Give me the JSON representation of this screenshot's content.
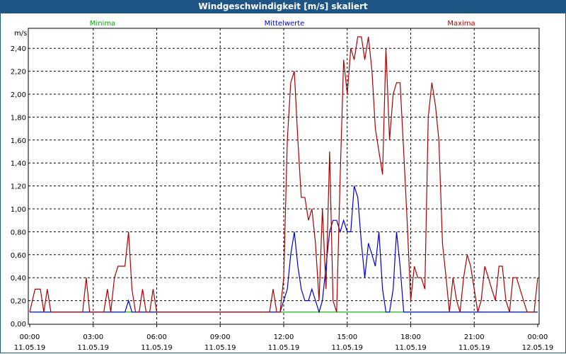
{
  "window": {
    "title": "Windgeschwindigkeit [m/s] skaliert"
  },
  "colors": {
    "titlebar": "#1f5585",
    "minima": "#00aa00",
    "mittelwerte": "#0000cc",
    "maxima": "#aa0000"
  },
  "chart_data": {
    "type": "line",
    "title": "Windgeschwindigkeit [m/s] skaliert",
    "ylabel": "m/s",
    "xlabel": "",
    "ylim": [
      0,
      2.5
    ],
    "xlim": [
      0,
      24
    ],
    "grid": true,
    "legend_placement": "top",
    "y_ticks": [
      "0,00",
      "0,20",
      "0,40",
      "0,60",
      "0,80",
      "1,00",
      "1,20",
      "1,40",
      "1,60",
      "1,80",
      "2,00",
      "2,20",
      "2,40"
    ],
    "x_ticks": [
      {
        "time": "00:00",
        "date": "11.05.19"
      },
      {
        "time": "03:00",
        "date": "11.05.19"
      },
      {
        "time": "06:00",
        "date": "11.05.19"
      },
      {
        "time": "09:00",
        "date": "11.05.19"
      },
      {
        "time": "12:00",
        "date": "11.05.19"
      },
      {
        "time": "15:00",
        "date": "11.05.19"
      },
      {
        "time": "18:00",
        "date": "11.05.19"
      },
      {
        "time": "21:00",
        "date": "11.05.19"
      },
      {
        "time": "00:00",
        "date": "12.05.19"
      }
    ],
    "series": [
      {
        "name": "Minima",
        "color": "#00aa00",
        "x": [
          0,
          24
        ],
        "y": [
          0.1,
          0.1
        ]
      },
      {
        "name": "Mittelwerte",
        "color": "#0000cc",
        "x": [
          0,
          4.5,
          4.67,
          4.83,
          11.83,
          12.17,
          12.33,
          12.5,
          12.67,
          12.83,
          13.0,
          13.17,
          13.33,
          13.5,
          13.67,
          13.83,
          14.0,
          14.17,
          14.33,
          14.5,
          14.67,
          14.83,
          15.0,
          15.17,
          15.33,
          15.5,
          15.67,
          15.83,
          16.0,
          16.17,
          16.33,
          16.5,
          16.67,
          16.83,
          17.0,
          17.17,
          17.33,
          17.5,
          17.67,
          24
        ],
        "y": [
          0.1,
          0.1,
          0.2,
          0.1,
          0.1,
          0.3,
          0.6,
          0.8,
          0.5,
          0.3,
          0.2,
          0.2,
          0.3,
          0.2,
          0.1,
          0.2,
          0.5,
          0.8,
          0.9,
          0.9,
          0.8,
          0.9,
          0.8,
          0.8,
          1.2,
          1.1,
          0.7,
          0.4,
          0.7,
          0.6,
          0.5,
          0.8,
          0.3,
          0.1,
          0.1,
          0.3,
          0.8,
          0.5,
          0.1,
          0.1
        ]
      },
      {
        "name": "Maxima",
        "color": "#aa0000",
        "x": [
          0,
          0.25,
          0.5,
          0.67,
          0.83,
          1.0,
          2.5,
          2.67,
          2.83,
          3.5,
          3.67,
          3.83,
          4.0,
          4.17,
          4.33,
          4.5,
          4.67,
          4.83,
          5.0,
          5.17,
          5.33,
          5.5,
          5.67,
          5.83,
          6.0,
          11.33,
          11.5,
          11.67,
          11.83,
          12.0,
          12.17,
          12.33,
          12.5,
          12.67,
          12.83,
          13.0,
          13.17,
          13.33,
          13.5,
          13.67,
          13.83,
          14.0,
          14.17,
          14.33,
          14.5,
          14.67,
          14.83,
          15.0,
          15.17,
          15.33,
          15.5,
          15.67,
          15.83,
          16.0,
          16.17,
          16.33,
          16.5,
          16.67,
          16.83,
          17.0,
          17.17,
          17.33,
          17.5,
          17.67,
          17.83,
          18.0,
          18.17,
          18.33,
          18.5,
          18.67,
          18.83,
          19.0,
          19.17,
          19.33,
          19.5,
          19.67,
          19.83,
          20.0,
          20.17,
          20.33,
          20.5,
          20.67,
          20.83,
          21.0,
          21.17,
          21.33,
          21.5,
          21.67,
          21.83,
          22.0,
          22.17,
          22.33,
          22.5,
          22.67,
          22.83,
          23.0,
          23.5,
          23.67,
          23.83,
          24.0
        ],
        "y": [
          0.1,
          0.3,
          0.3,
          0.1,
          0.3,
          0.1,
          0.1,
          0.4,
          0.1,
          0.1,
          0.3,
          0.1,
          0.4,
          0.5,
          0.5,
          0.5,
          0.8,
          0.3,
          0.1,
          0.1,
          0.3,
          0.1,
          0.1,
          0.3,
          0.1,
          0.1,
          0.3,
          0.1,
          0.1,
          0.4,
          1.6,
          2.1,
          2.2,
          1.6,
          1.1,
          1.1,
          0.9,
          1.0,
          0.7,
          0.2,
          1.0,
          0.3,
          1.5,
          0.2,
          0.1,
          1.3,
          2.3,
          2.0,
          2.4,
          2.3,
          2.5,
          2.5,
          2.3,
          2.5,
          2.2,
          1.7,
          1.5,
          1.3,
          2.4,
          1.6,
          2.0,
          2.1,
          2.1,
          1.5,
          0.9,
          0.2,
          0.5,
          0.4,
          0.4,
          0.3,
          1.8,
          2.1,
          1.9,
          1.6,
          0.7,
          0.4,
          0.1,
          0.4,
          0.2,
          0.1,
          0.4,
          0.6,
          0.5,
          0.3,
          0.1,
          0.2,
          0.5,
          0.4,
          0.3,
          0.2,
          0.5,
          0.5,
          0.2,
          0.1,
          0.4,
          0.4,
          0.1,
          0.1,
          0.1,
          0.4
        ]
      }
    ]
  }
}
